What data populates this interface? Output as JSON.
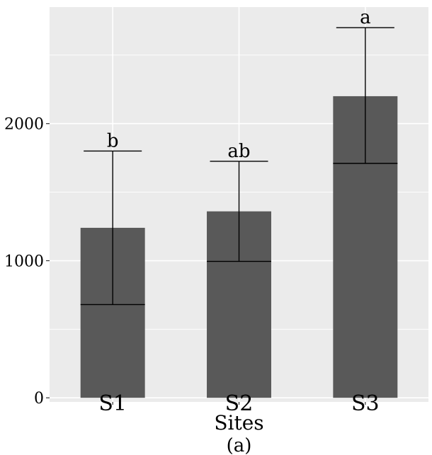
{
  "chart_data": {
    "type": "bar",
    "title": "",
    "xlabel": "Sites",
    "ylabel": "",
    "caption": "(a)",
    "categories": [
      "S1",
      "S2",
      "S3"
    ],
    "values": [
      1240,
      1360,
      2200
    ],
    "lower_marks": [
      680,
      995,
      1710
    ],
    "error_upper": [
      1800,
      1725,
      2700
    ],
    "significance_letters": [
      "b",
      "ab",
      "a"
    ],
    "yticks": [
      0,
      1000,
      2000
    ],
    "ytick_labels": [
      "0",
      "1000",
      "2000"
    ],
    "ylim": [
      -30,
      2850
    ],
    "grid": true,
    "colors": {
      "panel": "#ebebeb",
      "grid": "#ffffff",
      "bar": "#595959",
      "line": "#000000"
    }
  }
}
